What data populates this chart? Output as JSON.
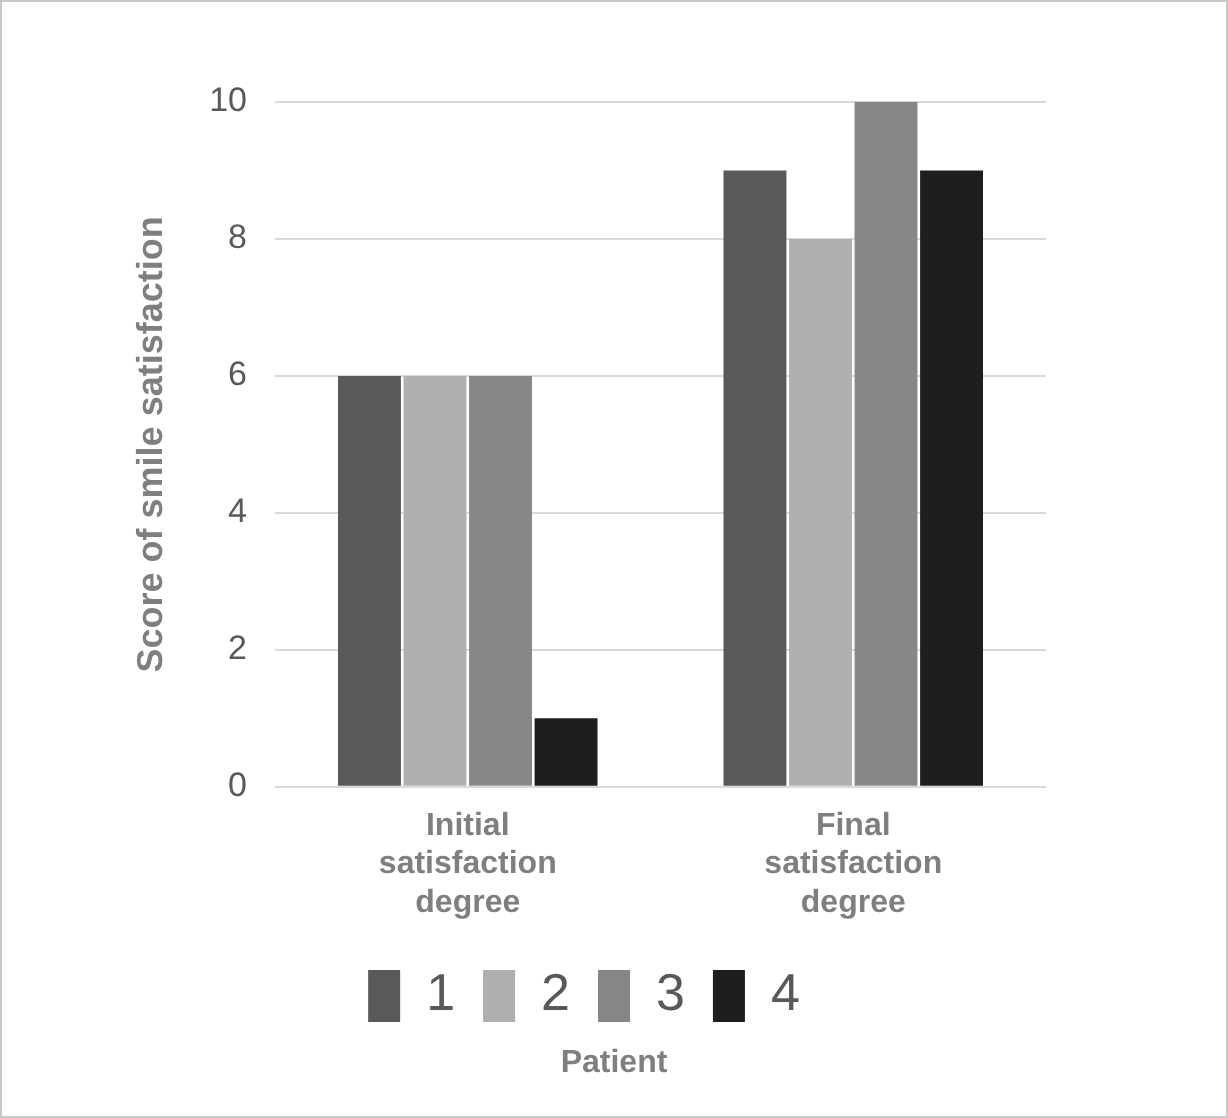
{
  "chart_data": {
    "type": "bar",
    "ylabel": "Score of smile satisfaction",
    "legend_title": "Patient",
    "categories": [
      "Initial satisfaction degree",
      "Final satisfaction degree"
    ],
    "series": [
      {
        "name": "1",
        "color": "#595959",
        "values": [
          6,
          9
        ]
      },
      {
        "name": "2",
        "color": "#b0b0b0",
        "values": [
          6,
          8
        ]
      },
      {
        "name": "3",
        "color": "#878787",
        "values": [
          6,
          10
        ]
      },
      {
        "name": "4",
        "color": "#1e1e1e",
        "values": [
          1,
          9
        ]
      }
    ],
    "ylim": [
      0,
      10
    ],
    "yticks": [
      0,
      2,
      4,
      6,
      8,
      10
    ],
    "grid": "y",
    "legend": "bottom"
  }
}
